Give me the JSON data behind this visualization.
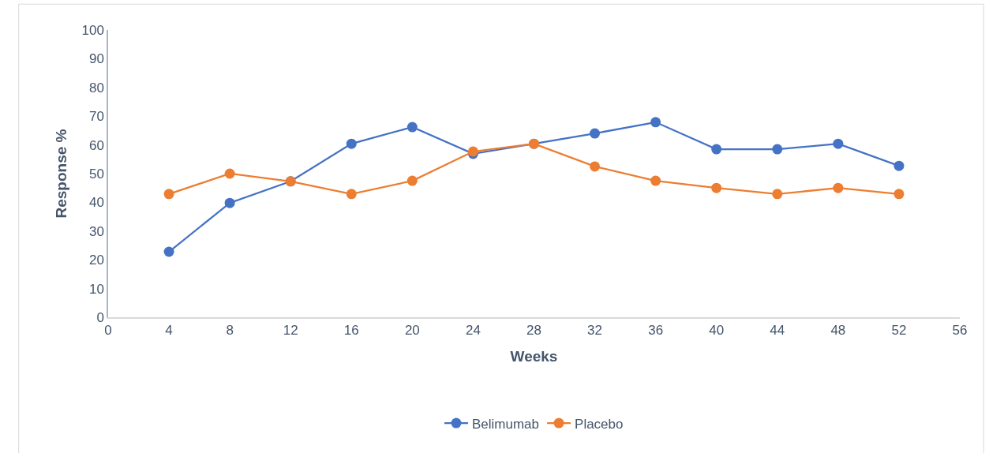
{
  "chart_data": {
    "type": "line",
    "xlabel": "Weeks",
    "ylabel": "Response %",
    "x": [
      4,
      8,
      12,
      16,
      20,
      24,
      28,
      32,
      36,
      40,
      44,
      48,
      52
    ],
    "series": [
      {
        "name": "Belimumab",
        "color": "#4472c4",
        "values": [
          22.8,
          39.8,
          47.3,
          60.4,
          66.2,
          56.9,
          60.4,
          64,
          67.9,
          58.5,
          58.5,
          60.4,
          52.7
        ]
      },
      {
        "name": "Placebo",
        "color": "#ed7d31",
        "values": [
          42.9,
          50,
          47.3,
          42.9,
          47.5,
          57.7,
          60.4,
          52.5,
          47.5,
          45,
          42.9,
          45,
          42.9
        ]
      }
    ],
    "xlim": [
      0,
      56
    ],
    "xticks": [
      0,
      4,
      8,
      12,
      16,
      20,
      24,
      28,
      32,
      36,
      40,
      44,
      48,
      52,
      56
    ],
    "ylim": [
      0,
      100
    ],
    "yticks": [
      0,
      10,
      20,
      30,
      40,
      50,
      60,
      70,
      80,
      90,
      100
    ],
    "grid": false,
    "legend": "bottom",
    "marker": "circle",
    "line_style": "solid"
  }
}
